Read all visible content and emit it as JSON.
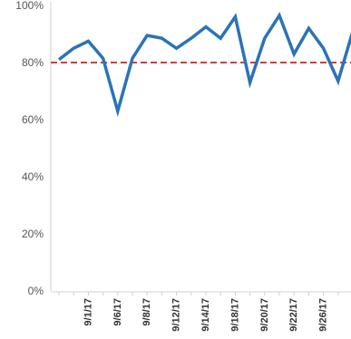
{
  "chart_data": {
    "type": "line",
    "title": "",
    "xlabel": "",
    "ylabel": "",
    "ylim": [
      0,
      100
    ],
    "y_ticks": [
      "0%",
      "20%",
      "40%",
      "60%",
      "80%",
      "100%"
    ],
    "y_tick_values": [
      0,
      20,
      40,
      60,
      80,
      100
    ],
    "grid": false,
    "x_tick_labels": [
      {
        "index": 2,
        "label": "9/1/17"
      },
      {
        "index": 4,
        "label": "9/6/17"
      },
      {
        "index": 6,
        "label": "9/8/17"
      },
      {
        "index": 8,
        "label": "9/12/17"
      },
      {
        "index": 10,
        "label": "9/14/17"
      },
      {
        "index": 12,
        "label": "9/18/17"
      },
      {
        "index": 14,
        "label": "9/20/17"
      },
      {
        "index": 16,
        "label": "9/22/17"
      },
      {
        "index": 18,
        "label": "9/26/17"
      }
    ],
    "series": [
      {
        "values": [
          81,
          85,
          87.5,
          81.5,
          63,
          81.5,
          89.5,
          88.5,
          85,
          88.5,
          92.5,
          88.5,
          96,
          73,
          88.5,
          96.5,
          83,
          92,
          85,
          73.5,
          91
        ],
        "color": "#2a73b8"
      }
    ],
    "reference_line": {
      "value": 80,
      "color": "#d93a3a",
      "style": "dashed"
    }
  }
}
